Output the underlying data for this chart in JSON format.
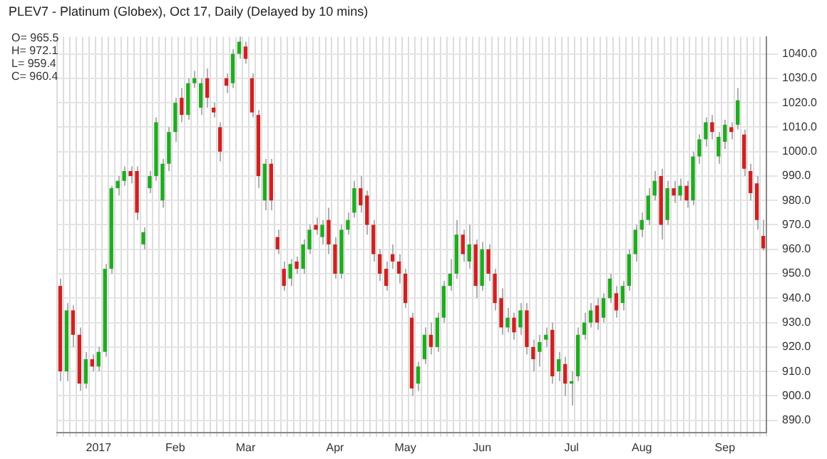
{
  "chart_data": {
    "type": "candlestick",
    "title": "PLEV7 - Platinum (Globex), Oct 17, Daily (Delayed by 10 mins)",
    "annotations": [
      "O= 965.5",
      "H= 972.1",
      "L= 959.4",
      "C= 960.4"
    ],
    "categories": [
      null,
      null,
      null,
      null,
      null,
      null,
      "2017",
      null,
      null,
      null,
      null,
      null,
      null,
      null,
      null,
      null,
      null,
      null,
      "Feb",
      null,
      null,
      null,
      null,
      null,
      null,
      null,
      null,
      null,
      null,
      "Mar",
      null,
      null,
      null,
      null,
      null,
      null,
      null,
      null,
      null,
      null,
      null,
      null,
      null,
      "Apr",
      null,
      null,
      null,
      null,
      null,
      null,
      null,
      null,
      null,
      null,
      "May",
      null,
      null,
      null,
      null,
      null,
      null,
      null,
      null,
      null,
      null,
      null,
      "Jun",
      null,
      null,
      null,
      null,
      null,
      null,
      null,
      null,
      null,
      null,
      null,
      null,
      null,
      "Jul",
      null,
      null,
      null,
      null,
      null,
      null,
      null,
      null,
      null,
      null,
      "Aug",
      null,
      null,
      null,
      null,
      null,
      null,
      null,
      null,
      null,
      null,
      null,
      null,
      "Sep",
      null,
      null,
      null,
      null,
      null,
      null
    ],
    "ohlc": [
      [
        945,
        948,
        906,
        910
      ],
      [
        910,
        938,
        906,
        935
      ],
      [
        935,
        937,
        920,
        925
      ],
      [
        925,
        928,
        902,
        905
      ],
      [
        905,
        918,
        903,
        915
      ],
      [
        915,
        917,
        910,
        912
      ],
      [
        912,
        920,
        910,
        918
      ],
      [
        918,
        954,
        916,
        952
      ],
      [
        952,
        986,
        950,
        985
      ],
      [
        985,
        990,
        982,
        988
      ],
      [
        988,
        994,
        986,
        992
      ],
      [
        992,
        994,
        987,
        990
      ],
      [
        992,
        994,
        972,
        975
      ],
      [
        962,
        969,
        960,
        967
      ],
      [
        985,
        992,
        983,
        990
      ],
      [
        990,
        1014,
        988,
        1012
      ],
      [
        980,
        997,
        977,
        995
      ],
      [
        995,
        1010,
        992,
        1008
      ],
      [
        1008,
        1022,
        1004,
        1020
      ],
      [
        1022,
        1026,
        1012,
        1015
      ],
      [
        1015,
        1030,
        1013,
        1028
      ],
      [
        1028,
        1033,
        1026,
        1030
      ],
      [
        1018,
        1030,
        1015,
        1028
      ],
      [
        1030,
        1034,
        1018,
        1022
      ],
      [
        1018,
        1020,
        1014,
        1016
      ],
      [
        1010,
        1012,
        996,
        1000
      ],
      [
        1030,
        1032,
        1024,
        1027
      ],
      [
        1028,
        1042,
        1026,
        1040
      ],
      [
        1040,
        1047,
        1038,
        1045
      ],
      [
        1043,
        1045,
        1036,
        1038
      ],
      [
        1030,
        1032,
        1014,
        1016
      ],
      [
        1015,
        1017,
        985,
        990
      ],
      [
        980,
        997,
        976,
        995
      ],
      [
        995,
        997,
        976,
        980
      ],
      [
        965,
        968,
        958,
        960
      ],
      [
        952,
        955,
        943,
        945
      ],
      [
        948,
        956,
        945,
        954
      ],
      [
        955,
        957,
        950,
        952
      ],
      [
        952,
        964,
        950,
        962
      ],
      [
        960,
        970,
        958,
        968
      ],
      [
        970,
        973,
        966,
        968
      ],
      [
        965,
        972,
        962,
        970
      ],
      [
        972,
        977,
        958,
        962
      ],
      [
        962,
        965,
        948,
        950
      ],
      [
        950,
        970,
        948,
        968
      ],
      [
        968,
        975,
        966,
        972
      ],
      [
        975,
        988,
        973,
        985
      ],
      [
        985,
        990,
        975,
        978
      ],
      [
        982,
        984,
        966,
        970
      ],
      [
        970,
        972,
        955,
        958
      ],
      [
        958,
        960,
        947,
        950
      ],
      [
        952,
        955,
        943,
        945
      ],
      [
        958,
        962,
        952,
        955
      ],
      [
        955,
        958,
        946,
        950
      ],
      [
        950,
        952,
        936,
        938
      ],
      [
        932,
        934,
        900,
        903
      ],
      [
        905,
        914,
        902,
        912
      ],
      [
        915,
        928,
        913,
        925
      ],
      [
        925,
        930,
        917,
        920
      ],
      [
        920,
        934,
        918,
        932
      ],
      [
        932,
        947,
        930,
        945
      ],
      [
        945,
        956,
        943,
        950
      ],
      [
        950,
        972,
        948,
        966
      ],
      [
        966,
        968,
        955,
        958
      ],
      [
        955,
        970,
        952,
        962
      ],
      [
        962,
        964,
        940,
        945
      ],
      [
        945,
        963,
        943,
        960
      ],
      [
        960,
        962,
        947,
        950
      ],
      [
        950,
        952,
        935,
        938
      ],
      [
        940,
        944,
        925,
        928
      ],
      [
        928,
        936,
        926,
        932
      ],
      [
        932,
        934,
        923,
        926
      ],
      [
        928,
        938,
        925,
        935
      ],
      [
        935,
        938,
        917,
        920
      ],
      [
        920,
        923,
        910,
        915
      ],
      [
        918,
        925,
        912,
        922
      ],
      [
        923,
        928,
        920,
        925
      ],
      [
        927,
        930,
        905,
        908
      ],
      [
        910,
        918,
        906,
        915
      ],
      [
        913,
        916,
        900,
        905
      ],
      [
        905,
        910,
        896,
        906
      ],
      [
        908,
        928,
        906,
        925
      ],
      [
        925,
        934,
        923,
        930
      ],
      [
        930,
        938,
        928,
        935
      ],
      [
        937,
        940,
        927,
        930
      ],
      [
        932,
        942,
        930,
        940
      ],
      [
        940,
        950,
        938,
        948
      ],
      [
        942,
        945,
        932,
        935
      ],
      [
        938,
        947,
        935,
        945
      ],
      [
        945,
        960,
        943,
        958
      ],
      [
        958,
        970,
        955,
        968
      ],
      [
        968,
        975,
        965,
        972
      ],
      [
        972,
        985,
        970,
        982
      ],
      [
        982,
        992,
        980,
        988
      ],
      [
        990,
        993,
        964,
        970
      ],
      [
        972,
        988,
        970,
        985
      ],
      [
        985,
        988,
        979,
        982
      ],
      [
        982,
        989,
        980,
        986
      ],
      [
        986,
        988,
        977,
        980
      ],
      [
        980,
        1000,
        978,
        998
      ],
      [
        998,
        1007,
        995,
        1005
      ],
      [
        1005,
        1014,
        1002,
        1012
      ],
      [
        1012,
        1015,
        1005,
        1008
      ],
      [
        998,
        1008,
        995,
        1006
      ],
      [
        1004,
        1013,
        1001,
        1011
      ],
      [
        1010,
        1012,
        1005,
        1008
      ],
      [
        1011,
        1026,
        1009,
        1021
      ],
      [
        1007,
        1009,
        990,
        993
      ],
      [
        992,
        995,
        980,
        983
      ],
      [
        987,
        990,
        968,
        972
      ],
      [
        965.5,
        972.1,
        959.4,
        960.4
      ]
    ],
    "ylim": [
      885,
      1047
    ],
    "yticks": [
      {
        "value": 890,
        "label": "890.0"
      },
      {
        "value": 900,
        "label": "900.0"
      },
      {
        "value": 910,
        "label": "910.0"
      },
      {
        "value": 920,
        "label": "920.0"
      },
      {
        "value": 930,
        "label": "930.0"
      },
      {
        "value": 940,
        "label": "940.0"
      },
      {
        "value": 950,
        "label": "950.0"
      },
      {
        "value": 960,
        "label": "960.0"
      },
      {
        "value": 970,
        "label": "970.0"
      },
      {
        "value": 980,
        "label": "980.0"
      },
      {
        "value": 990,
        "label": "990.0"
      },
      {
        "value": 1000,
        "label": "1000.0"
      },
      {
        "value": 1010,
        "label": "1010.0"
      },
      {
        "value": 1020,
        "label": "1020.0"
      },
      {
        "value": 1030,
        "label": "1030.0"
      },
      {
        "value": 1040,
        "label": "1040.0"
      }
    ],
    "colors": [
      "#cc2222",
      "#22aa22",
      "#cc2222",
      "#cc2222",
      "#22aa22",
      "#cc2222",
      "#22aa22",
      "#22aa22",
      "#22aa22",
      "#22aa22",
      "#22aa22",
      "#cc2222",
      "#cc2222",
      "#22aa22",
      "#22aa22",
      "#22aa22",
      "#22aa22",
      "#22aa22",
      "#22aa22",
      "#cc2222",
      "#22aa22",
      "#22aa22",
      "#22aa22",
      "#cc2222",
      "#cc2222",
      "#cc2222",
      "#cc2222",
      "#22aa22",
      "#22aa22",
      "#cc2222",
      "#cc2222",
      "#cc2222",
      "#22aa22",
      "#cc2222",
      "#cc2222",
      "#cc2222",
      "#22aa22",
      "#cc2222",
      "#22aa22",
      "#22aa22",
      "#cc2222",
      "#22aa22",
      "#cc2222",
      "#cc2222",
      "#22aa22",
      "#22aa22",
      "#22aa22",
      "#cc2222",
      "#cc2222",
      "#cc2222",
      "#cc2222",
      "#cc2222",
      "#cc2222",
      "#cc2222",
      "#cc2222",
      "#cc2222",
      "#22aa22",
      "#22aa22",
      "#cc2222",
      "#22aa22",
      "#22aa22",
      "#22aa22",
      "#22aa22",
      "#cc2222",
      "#22aa22",
      "#cc2222",
      "#22aa22",
      "#cc2222",
      "#cc2222",
      "#cc2222",
      "#22aa22",
      "#cc2222",
      "#22aa22",
      "#cc2222",
      "#cc2222",
      "#22aa22",
      "#22aa22",
      "#cc2222",
      "#22aa22",
      "#cc2222",
      "#22aa22",
      "#22aa22",
      "#22aa22",
      "#22aa22",
      "#cc2222",
      "#22aa22",
      "#22aa22",
      "#cc2222",
      "#22aa22",
      "#22aa22",
      "#22aa22",
      "#22aa22",
      "#22aa22",
      "#22aa22",
      "#cc2222",
      "#22aa22",
      "#cc2222",
      "#22aa22",
      "#cc2222",
      "#22aa22",
      "#22aa22",
      "#22aa22",
      "#cc2222",
      "#22aa22",
      "#22aa22",
      "#cc2222",
      "#22aa22",
      "#cc2222",
      "#cc2222",
      "#cc2222",
      "#cc2222"
    ],
    "grid": true,
    "legend": false
  }
}
